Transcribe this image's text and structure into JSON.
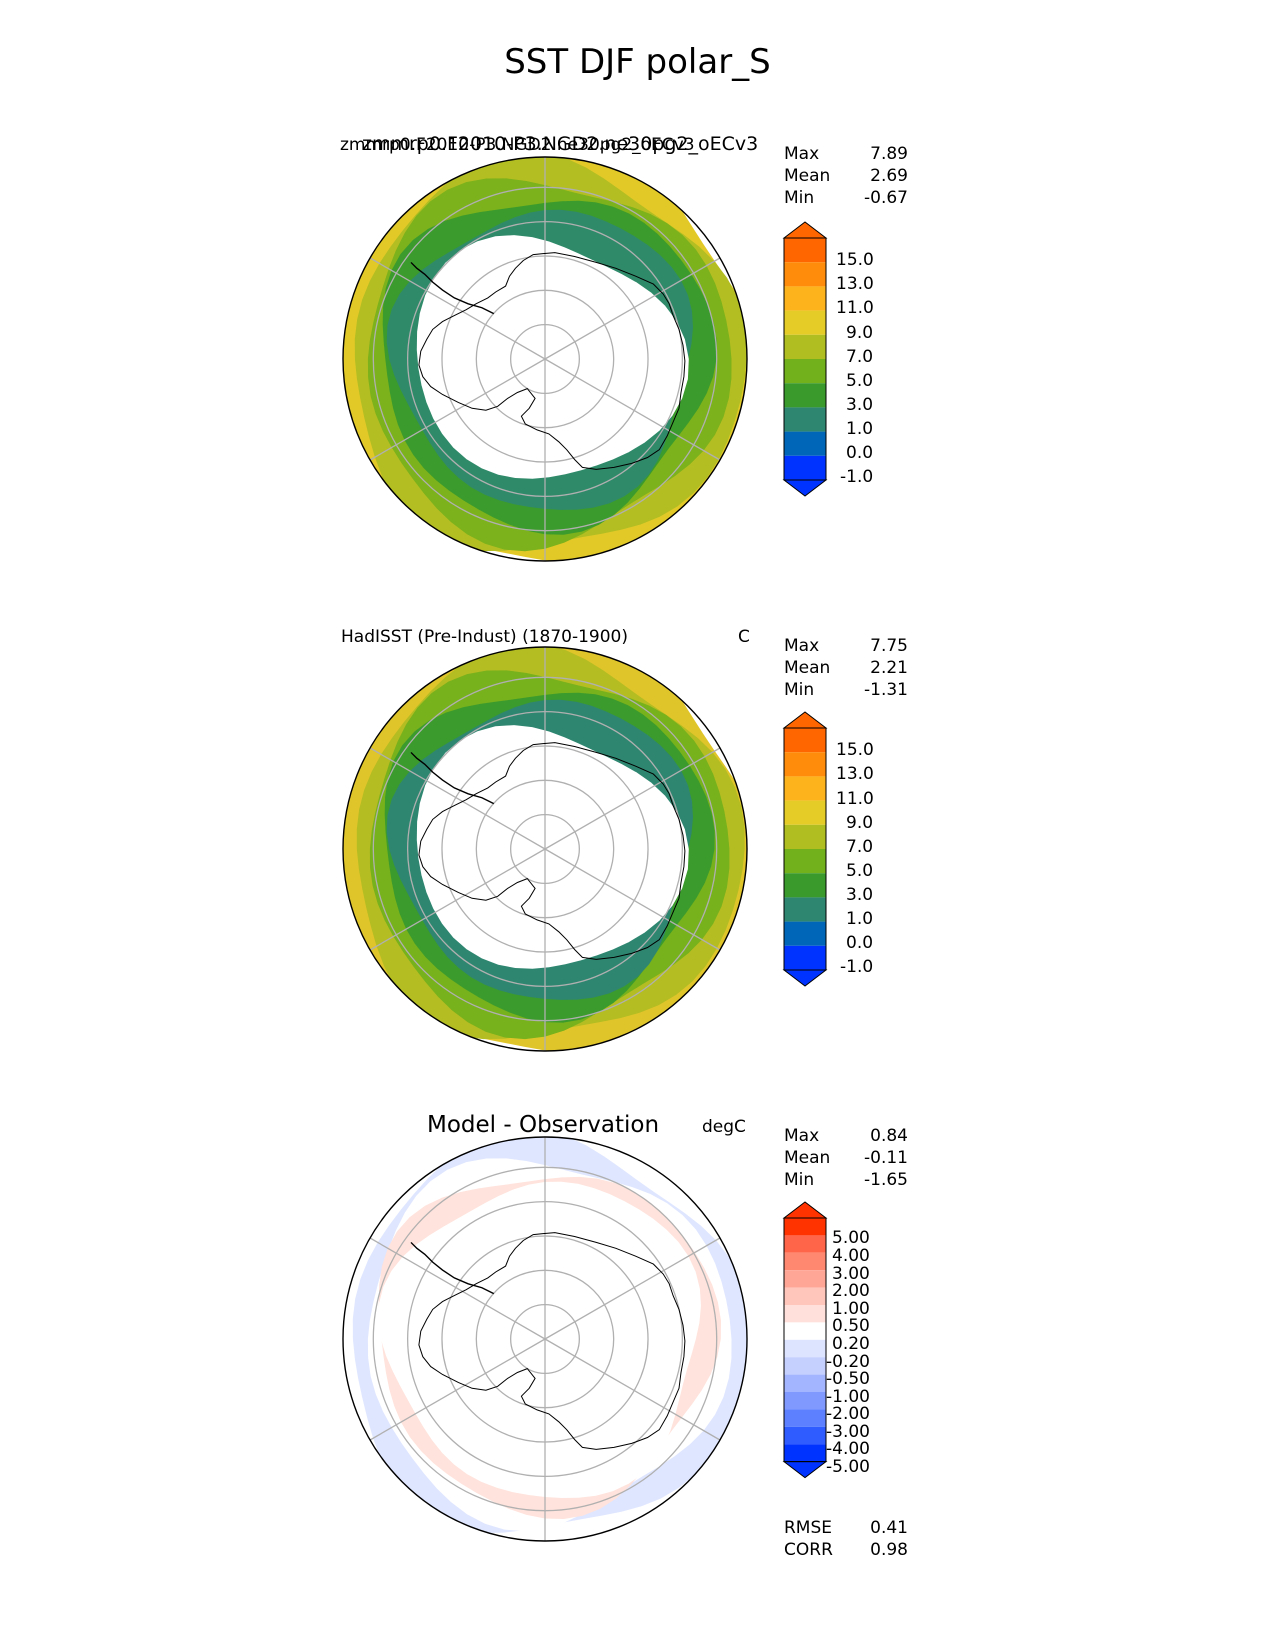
{
  "figure": {
    "title": "SST DJF polar_S"
  },
  "colors": {
    "sst_levels": [
      "#0033ff",
      "#0066b8",
      "#2e8670",
      "#3a9b2c",
      "#72b01c",
      "#b0be22",
      "#e6cc26",
      "#fcb31c",
      "#ff8c0a",
      "#ff6600",
      "#ff3300"
    ],
    "diff_levels": [
      "#0033ff",
      "#2e5cff",
      "#5c80ff",
      "#7f99ff",
      "#a3b5ff",
      "#c6d0ff",
      "#dde4ff",
      "#ffffff",
      "#ffe0da",
      "#ffc6bb",
      "#ffa696",
      "#ff8870",
      "#ff6548",
      "#ff3300"
    ],
    "land": "#ffffff",
    "coast": "#000000",
    "grid": "#b0b0b0"
  },
  "chart_data": [
    {
      "type": "heatmap",
      "projection": "polar stereographic (South Pole)",
      "title": "zmmrp0.F2010-P3.NGD2.ne30pg2_oECv3",
      "left_title": "zmmrp0.F2010-P3.NGD2.ne30pg2_oECv3",
      "units": "",
      "stats": [
        {
          "label": "Max",
          "value": "7.89"
        },
        {
          "label": "Mean",
          "value": "2.69"
        },
        {
          "label": "Min",
          "value": "-0.67"
        }
      ],
      "colorbar": {
        "levels": [
          "15.0",
          "13.0",
          "11.0",
          "9.0",
          "7.0",
          "5.0",
          "3.0",
          "1.0",
          "0.0",
          "-1.0"
        ],
        "extend": "both"
      }
    },
    {
      "type": "heatmap",
      "projection": "polar stereographic (South Pole)",
      "title": "",
      "left_title": "HadISST (Pre-Indust) (1870-1900)",
      "units": "C",
      "stats": [
        {
          "label": "Max",
          "value": "7.75"
        },
        {
          "label": "Mean",
          "value": "2.21"
        },
        {
          "label": "Min",
          "value": "-1.31"
        }
      ],
      "colorbar": {
        "levels": [
          "15.0",
          "13.0",
          "11.0",
          "9.0",
          "7.0",
          "5.0",
          "3.0",
          "1.0",
          "0.0",
          "-1.0"
        ],
        "extend": "both"
      }
    },
    {
      "type": "heatmap",
      "projection": "polar stereographic (South Pole)",
      "title": "Model - Observation",
      "left_title": "",
      "units": "degC",
      "stats": [
        {
          "label": "Max",
          "value": "0.84"
        },
        {
          "label": "Mean",
          "value": "-0.11"
        },
        {
          "label": "Min",
          "value": "-1.65"
        }
      ],
      "colorbar": {
        "levels": [
          "5.00",
          "4.00",
          "3.00",
          "2.00",
          "1.00",
          "0.50",
          "0.20",
          "-0.20",
          "-0.50",
          "-1.00",
          "-2.00",
          "-3.00",
          "-4.00",
          "-5.00"
        ],
        "extend": "both"
      },
      "metrics": [
        {
          "label": "RMSE",
          "value": "0.41"
        },
        {
          "label": "CORR",
          "value": "0.98"
        }
      ]
    }
  ]
}
